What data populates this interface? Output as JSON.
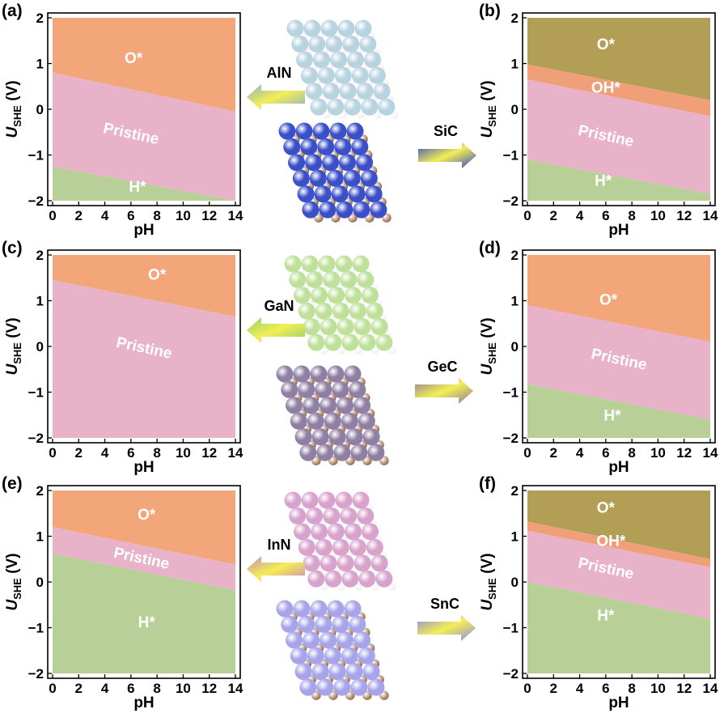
{
  "figure": {
    "colors": {
      "O": "#f2a67a",
      "OH": "#f0a078",
      "O_dark": "#b39e56",
      "Pristine": "#e8b3c8",
      "H": "#b8cf98",
      "frame": "#ffffff",
      "axis": "#000000"
    }
  },
  "chart_data": [
    {
      "type": "area",
      "panel": "(a)",
      "xlabel": "pH",
      "ylabel_main": "U",
      "ylabel_sub": "SHE",
      "ylabel_unit": " (V)",
      "xlim": [
        0,
        14
      ],
      "ylim": [
        -2,
        2
      ],
      "xticks": [
        "0",
        "2",
        "4",
        "6",
        "8",
        "10",
        "12",
        "14"
      ],
      "yticks": [
        "2",
        "1",
        "0",
        "−1",
        "−2"
      ],
      "boundaries": [
        {
          "between": [
            "O*",
            "Pristine"
          ],
          "y_at_pH0": 0.8,
          "y_at_pH14": -0.05
        },
        {
          "between": [
            "Pristine",
            "H*"
          ],
          "y_at_pH0": -1.25,
          "y_at_pH14": -2.0
        }
      ],
      "regions": [
        {
          "label": "O*",
          "color_key": "O",
          "label_pos": [
            6.2,
            1.1
          ]
        },
        {
          "label": "Pristine",
          "color_key": "Pristine",
          "label_pos": [
            6,
            -0.55
          ]
        },
        {
          "label": "H*",
          "color_key": "H",
          "label_pos": [
            6.5,
            -1.72
          ]
        }
      ]
    },
    {
      "type": "area",
      "panel": "(b)",
      "xlabel": "pH",
      "ylabel_main": "U",
      "ylabel_sub": "SHE",
      "ylabel_unit": " (V)",
      "xlim": [
        0,
        14
      ],
      "ylim": [
        -2,
        2
      ],
      "xticks": [
        "0",
        "2",
        "4",
        "6",
        "8",
        "10",
        "12",
        "14"
      ],
      "yticks": [
        "2",
        "1",
        "0",
        "−1",
        "−2"
      ],
      "boundaries": [
        {
          "between": [
            "O*",
            "OH*"
          ],
          "y_at_pH0": 0.98,
          "y_at_pH14": 0.2
        },
        {
          "between": [
            "OH*",
            "Pristine"
          ],
          "y_at_pH0": 0.65,
          "y_at_pH14": -0.15
        },
        {
          "between": [
            "Pristine",
            "H*"
          ],
          "y_at_pH0": -1.1,
          "y_at_pH14": -1.85
        }
      ],
      "regions": [
        {
          "label": "O*",
          "color_key": "O_dark",
          "label_pos": [
            6,
            1.4
          ]
        },
        {
          "label": "OH*",
          "color_key": "OH",
          "label_pos": [
            6,
            0.45
          ]
        },
        {
          "label": "Pristine",
          "color_key": "Pristine",
          "label_pos": [
            6,
            -0.6
          ]
        },
        {
          "label": "H*",
          "color_key": "H",
          "label_pos": [
            5.8,
            -1.58
          ]
        }
      ]
    },
    {
      "type": "area",
      "panel": "(c)",
      "xlabel": "pH",
      "ylabel_main": "U",
      "ylabel_sub": "SHE",
      "ylabel_unit": " (V)",
      "xlim": [
        0,
        14
      ],
      "ylim": [
        -2,
        2
      ],
      "xticks": [
        "0",
        "2",
        "4",
        "6",
        "8",
        "10",
        "12",
        "14"
      ],
      "yticks": [
        "2",
        "1",
        "0",
        "−1",
        "−2"
      ],
      "boundaries": [
        {
          "between": [
            "O*",
            "Pristine"
          ],
          "y_at_pH0": 1.45,
          "y_at_pH14": 0.65
        }
      ],
      "regions": [
        {
          "label": "O*",
          "color_key": "O",
          "label_pos": [
            8,
            1.55
          ]
        },
        {
          "label": "Pristine",
          "color_key": "Pristine",
          "label_pos": [
            7,
            -0.05
          ]
        }
      ]
    },
    {
      "type": "area",
      "panel": "(d)",
      "xlabel": "pH",
      "ylabel_main": "U",
      "ylabel_sub": "SHE",
      "ylabel_unit": " (V)",
      "xlim": [
        0,
        14
      ],
      "ylim": [
        -2,
        2
      ],
      "xticks": [
        "0",
        "2",
        "4",
        "6",
        "8",
        "10",
        "12",
        "14"
      ],
      "yticks": [
        "2",
        "1",
        "0",
        "−1",
        "−2"
      ],
      "boundaries": [
        {
          "between": [
            "O*",
            "Pristine"
          ],
          "y_at_pH0": 0.9,
          "y_at_pH14": 0.1
        },
        {
          "between": [
            "Pristine",
            "H*"
          ],
          "y_at_pH0": -0.82,
          "y_at_pH14": -1.6
        }
      ],
      "regions": [
        {
          "label": "O*",
          "color_key": "O",
          "label_pos": [
            6.2,
            1.0
          ]
        },
        {
          "label": "Pristine",
          "color_key": "Pristine",
          "label_pos": [
            7,
            -0.3
          ]
        },
        {
          "label": "H*",
          "color_key": "H",
          "label_pos": [
            6.5,
            -1.53
          ]
        }
      ]
    },
    {
      "type": "area",
      "panel": "(e)",
      "xlabel": "pH",
      "ylabel_main": "U",
      "ylabel_sub": "SHE",
      "ylabel_unit": " (V)",
      "xlim": [
        0,
        14
      ],
      "ylim": [
        -2,
        2
      ],
      "xticks": [
        "0",
        "2",
        "4",
        "6",
        "8",
        "10",
        "12",
        "14"
      ],
      "yticks": [
        "2",
        "1",
        "0",
        "−1",
        "−2"
      ],
      "boundaries": [
        {
          "between": [
            "O*",
            "Pristine"
          ],
          "y_at_pH0": 1.2,
          "y_at_pH14": 0.38
        },
        {
          "between": [
            "Pristine",
            "H*"
          ],
          "y_at_pH0": 0.62,
          "y_at_pH14": -0.18
        }
      ],
      "regions": [
        {
          "label": "O*",
          "color_key": "O",
          "label_pos": [
            7.2,
            1.45
          ]
        },
        {
          "label": "Pristine",
          "color_key": "Pristine",
          "label_pos": [
            6.8,
            0.5
          ]
        },
        {
          "label": "H*",
          "color_key": "H",
          "label_pos": [
            7.2,
            -0.9
          ]
        }
      ]
    },
    {
      "type": "area",
      "panel": "(f)",
      "xlabel": "pH",
      "ylabel_main": "U",
      "ylabel_sub": "SHE",
      "ylabel_unit": " (V)",
      "xlim": [
        0,
        14
      ],
      "ylim": [
        -2,
        2
      ],
      "xticks": [
        "0",
        "2",
        "4",
        "6",
        "8",
        "10",
        "12",
        "14"
      ],
      "yticks": [
        "2",
        "1",
        "0",
        "−1",
        "−2"
      ],
      "boundaries": [
        {
          "between": [
            "O*",
            "OH*"
          ],
          "y_at_pH0": 1.32,
          "y_at_pH14": 0.5
        },
        {
          "between": [
            "OH*",
            "Pristine"
          ],
          "y_at_pH0": 1.12,
          "y_at_pH14": 0.32
        },
        {
          "between": [
            "Pristine",
            "H*"
          ],
          "y_at_pH0": 0.0,
          "y_at_pH14": -0.8
        }
      ],
      "regions": [
        {
          "label": "O*",
          "color_key": "O_dark",
          "label_pos": [
            6,
            1.6
          ]
        },
        {
          "label": "OH*",
          "color_key": "OH",
          "label_pos": [
            6.4,
            0.88
          ]
        },
        {
          "label": "Pristine",
          "color_key": "Pristine",
          "label_pos": [
            6,
            0.28
          ]
        },
        {
          "label": "H*",
          "color_key": "H",
          "label_pos": [
            6,
            -0.75
          ]
        }
      ]
    }
  ],
  "structures": [
    {
      "label": "AlN",
      "direction": "left",
      "big_color": "#b8d3e0",
      "small_color": "#f0f0f5",
      "arrow_color": "#8ab0c8"
    },
    {
      "label": "SiC",
      "direction": "right",
      "big_color": "#3a4fc8",
      "small_color": "#9a6a48",
      "arrow_color": "#2a44c8"
    },
    {
      "label": "GaN",
      "direction": "left",
      "big_color": "#bfe09a",
      "small_color": "#f0f0f5",
      "arrow_color": "#8ed06a"
    },
    {
      "label": "GeC",
      "direction": "right",
      "big_color": "#8f7fa2",
      "small_color": "#9a6a48",
      "arrow_color": "#8a7aa0"
    },
    {
      "label": "InN",
      "direction": "left",
      "big_color": "#d7a2cc",
      "small_color": "#f0f0f5",
      "arrow_color": "#c88ab8"
    },
    {
      "label": "SnC",
      "direction": "right",
      "big_color": "#a8a4ea",
      "small_color": "#9a6a48",
      "arrow_color": "#8e88e8"
    }
  ]
}
